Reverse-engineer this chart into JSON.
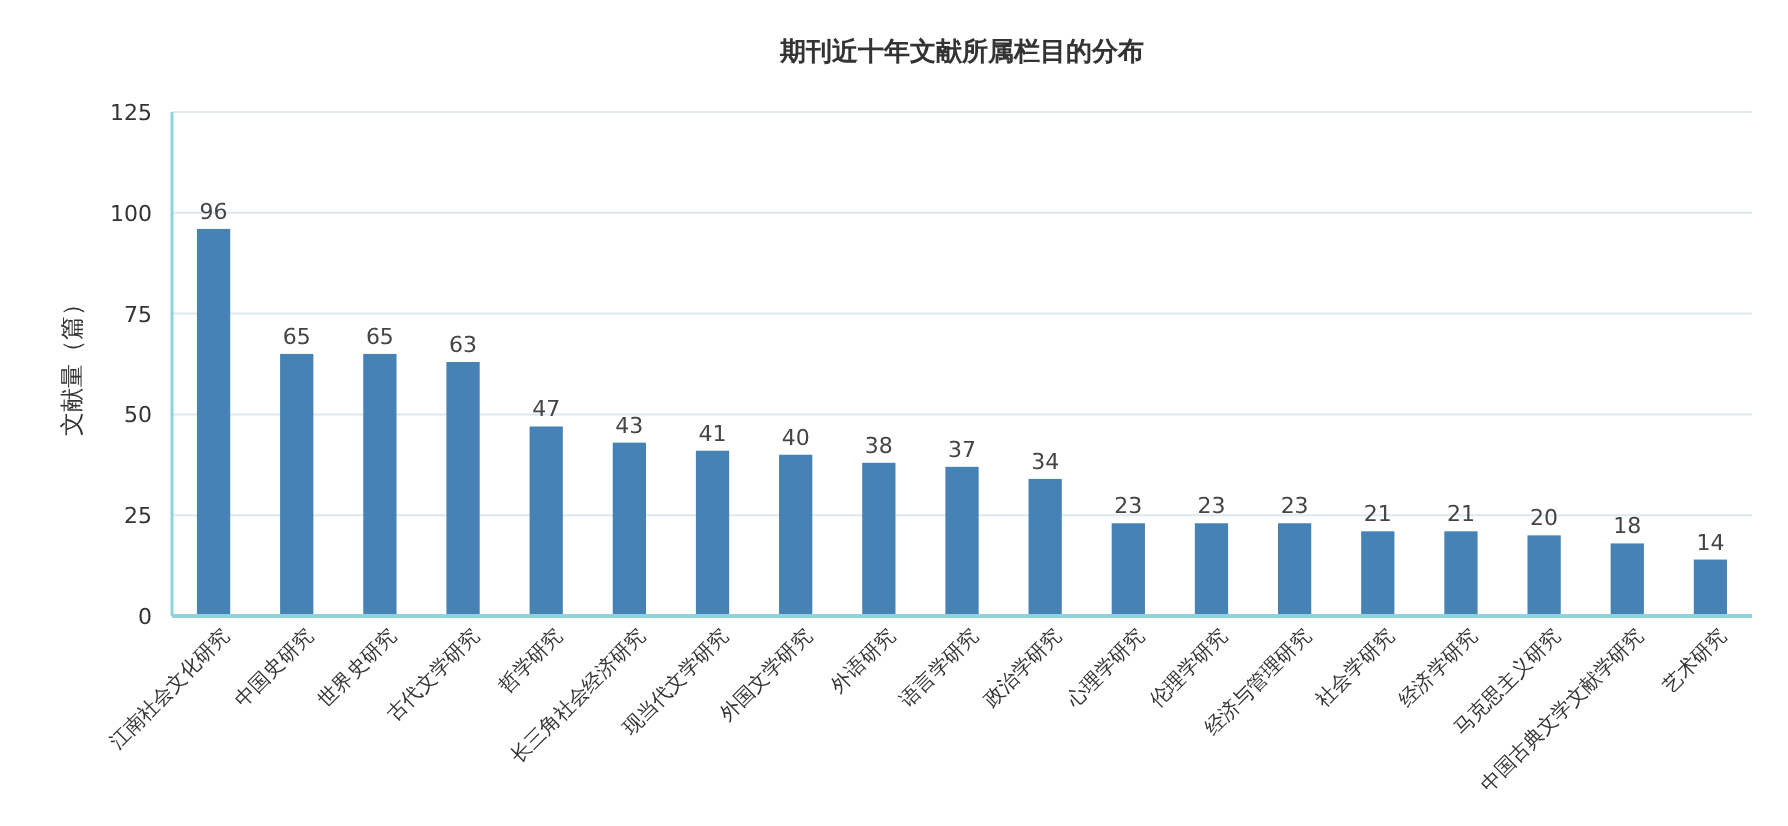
{
  "chart_data": {
    "type": "bar",
    "title": "期刊近十年文献所属栏目的分布",
    "ylabel": "文献量（篇）",
    "categories": [
      "江南社会文化研究",
      "中国史研究",
      "世界史研究",
      "古代文学研究",
      "哲学研究",
      "长三角社会经济研究",
      "现当代文学研究",
      "外国文学研究",
      "外语研究",
      "语言学研究",
      "政治学研究",
      "心理学研究",
      "伦理学研究",
      "经济与管理研究",
      "社会学研究",
      "经济学研究",
      "马克思主义研究",
      "中国古典文学文献学研究",
      "艺术研究"
    ],
    "values": [
      96,
      65,
      65,
      63,
      47,
      43,
      41,
      40,
      38,
      37,
      34,
      23,
      23,
      23,
      21,
      21,
      20,
      18,
      14
    ],
    "color": "#4682b4",
    "ylim": [
      0,
      125
    ],
    "yticks": [
      0,
      25,
      50,
      75,
      100,
      125
    ],
    "grid": "y",
    "data_labels": true
  }
}
